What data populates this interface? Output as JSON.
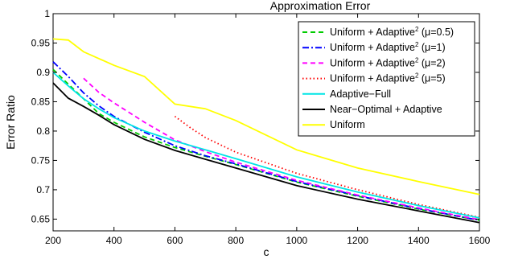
{
  "chart_data": {
    "type": "line",
    "title": "Approximation Error",
    "xlabel": "c",
    "ylabel": "Error Ratio",
    "xlim": [
      200,
      1600
    ],
    "ylim": [
      0.63,
      1.0
    ],
    "xticks": [
      200,
      400,
      600,
      800,
      1000,
      1200,
      1400,
      1600
    ],
    "yticks": [
      0.65,
      0.7,
      0.75,
      0.8,
      0.85,
      0.9,
      0.95,
      1
    ],
    "ytick_labels": [
      "0.65",
      "0.7",
      "0.75",
      "0.8",
      "0.85",
      "0.9",
      "0.95",
      "1"
    ],
    "grid": false,
    "legend_position": "top-right",
    "series": [
      {
        "name_main": "Uniform + Adaptive",
        "name_sup": "2",
        "name_suffix": " (μ=0.5)",
        "color": "#00cc00",
        "dash": "6,4",
        "x": [
          200,
          250,
          300,
          350,
          400,
          500,
          600,
          700,
          800,
          1000,
          1200,
          1400,
          1600
        ],
        "y": [
          0.905,
          0.88,
          0.855,
          0.83,
          0.815,
          0.79,
          0.772,
          0.757,
          0.743,
          0.713,
          0.689,
          0.667,
          0.648
        ]
      },
      {
        "name_main": "Uniform + Adaptive",
        "name_sup": "2",
        "name_suffix": " (μ=1)",
        "color": "#0000ff",
        "dash": "8,3,2,3",
        "x": [
          200,
          250,
          300,
          350,
          400,
          500,
          600,
          700,
          800,
          1000,
          1200,
          1400,
          1600
        ],
        "y": [
          0.918,
          0.893,
          0.865,
          0.843,
          0.825,
          0.798,
          0.775,
          0.758,
          0.744,
          0.714,
          0.69,
          0.668,
          0.648
        ]
      },
      {
        "name_main": "Uniform + Adaptive",
        "name_sup": "2",
        "name_suffix": " (μ=2)",
        "color": "#ff00ff",
        "dash": "6,4",
        "x": [
          300,
          350,
          400,
          500,
          600,
          700,
          800,
          1000,
          1200,
          1400,
          1600
        ],
        "y": [
          0.89,
          0.866,
          0.848,
          0.815,
          0.785,
          0.765,
          0.747,
          0.716,
          0.691,
          0.669,
          0.649
        ]
      },
      {
        "name_main": "Uniform + Adaptive",
        "name_sup": "2",
        "name_suffix": " (μ=5)",
        "color": "#ff0000",
        "dash": "1.5,3",
        "x": [
          600,
          650,
          700,
          800,
          1000,
          1200,
          1400,
          1600
        ],
        "y": [
          0.825,
          0.806,
          0.789,
          0.764,
          0.728,
          0.7,
          0.675,
          0.653
        ]
      },
      {
        "name_main": "Adaptive−Full",
        "name_sup": "",
        "name_suffix": "",
        "color": "#00e5e5",
        "dash": "",
        "x": [
          200,
          250,
          300,
          350,
          400,
          500,
          600,
          700,
          800,
          1000,
          1200,
          1400,
          1600
        ],
        "y": [
          0.9,
          0.877,
          0.855,
          0.838,
          0.823,
          0.8,
          0.783,
          0.768,
          0.753,
          0.722,
          0.696,
          0.673,
          0.652
        ]
      },
      {
        "name_main": "Near−Optimal + Adaptive",
        "name_sup": "",
        "name_suffix": "",
        "color": "#000000",
        "dash": "",
        "x": [
          200,
          250,
          300,
          350,
          400,
          500,
          600,
          700,
          800,
          1000,
          1200,
          1400,
          1600
        ],
        "y": [
          0.882,
          0.856,
          0.842,
          0.827,
          0.811,
          0.786,
          0.767,
          0.752,
          0.737,
          0.707,
          0.684,
          0.664,
          0.644
        ]
      },
      {
        "name_main": "Uniform",
        "name_sup": "",
        "name_suffix": "",
        "color": "#ffff00",
        "dash": "",
        "x": [
          200,
          250,
          300,
          400,
          500,
          600,
          700,
          800,
          1000,
          1200,
          1400,
          1600
        ],
        "y": [
          0.957,
          0.955,
          0.935,
          0.912,
          0.893,
          0.846,
          0.838,
          0.818,
          0.768,
          0.737,
          0.714,
          0.692
        ]
      }
    ]
  }
}
